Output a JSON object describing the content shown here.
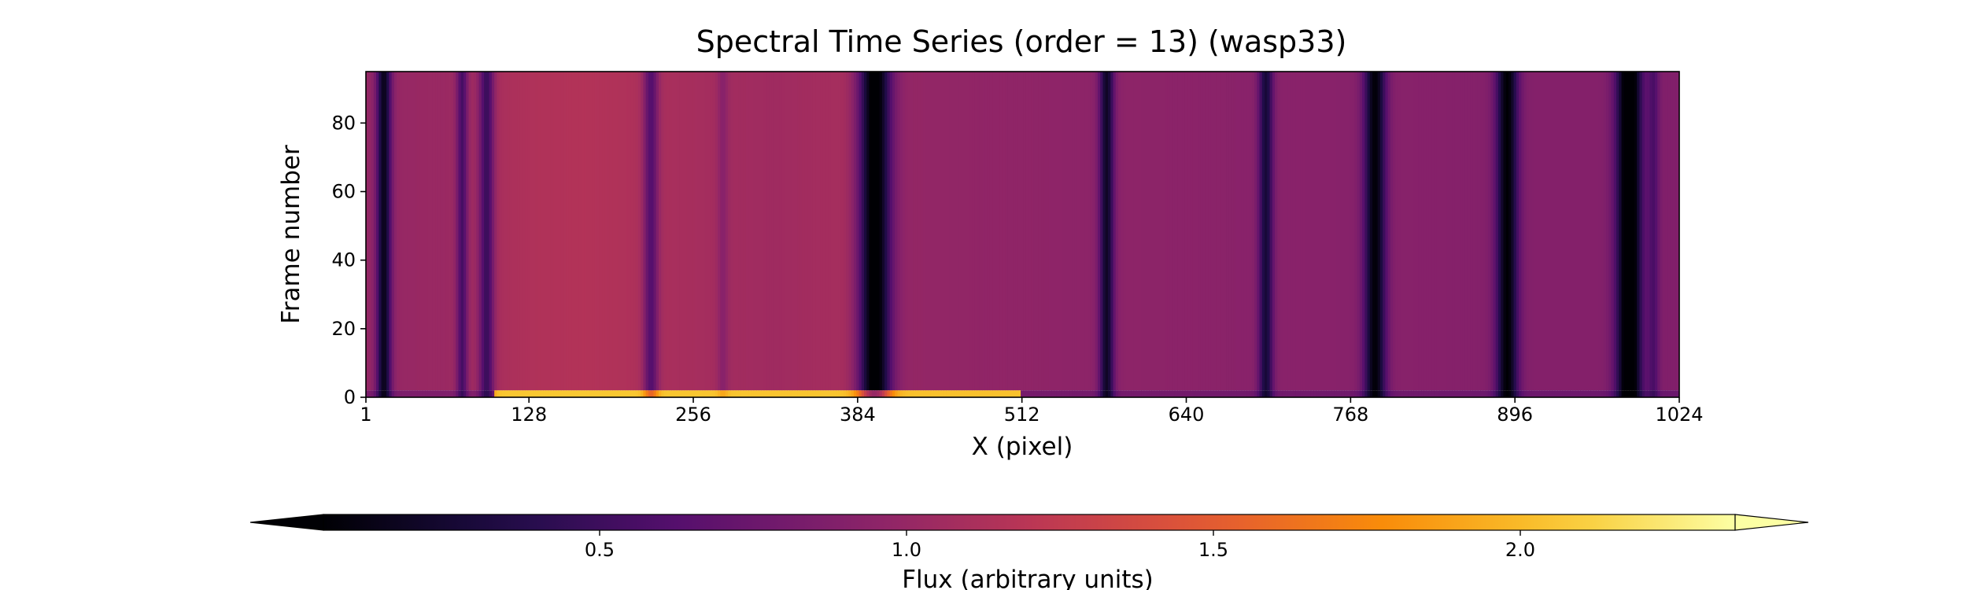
{
  "chart_data": {
    "type": "heatmap",
    "title": "Spectral Time Series (order = 13) (wasp33)",
    "xlabel": "X (pixel)",
    "ylabel": "Frame number",
    "xlim": [
      1,
      1024
    ],
    "ylim": [
      0,
      95
    ],
    "xticks": [
      1,
      128,
      256,
      384,
      512,
      640,
      768,
      896,
      1024
    ],
    "yticks": [
      0,
      20,
      40,
      60,
      80
    ],
    "colormap": "inferno",
    "colorbar": {
      "label": "Flux (arbitrary units)",
      "range": [
        0.05,
        2.35
      ],
      "ticks": [
        0.5,
        1.0,
        1.5,
        2.0
      ],
      "tick_labels": [
        "0.5",
        "1.0",
        "1.5",
        "2.0"
      ],
      "extend": "both",
      "orientation": "horizontal"
    },
    "continuum_profile": {
      "x": [
        1,
        20,
        60,
        100,
        130,
        170,
        200,
        240,
        280,
        320,
        360,
        383,
        400,
        440,
        480,
        520,
        560,
        600,
        640,
        680,
        720,
        760,
        800,
        840,
        880,
        920,
        960,
        1000,
        1024
      ],
      "flux": [
        1.0,
        1.0,
        1.02,
        1.1,
        1.14,
        1.16,
        1.14,
        1.1,
        1.07,
        1.05,
        1.08,
        1.12,
        1.0,
        0.98,
        0.97,
        0.96,
        0.95,
        0.95,
        0.94,
        0.93,
        0.93,
        0.92,
        0.92,
        0.91,
        0.9,
        0.9,
        0.9,
        0.89,
        0.88
      ]
    },
    "absorption_lines": [
      {
        "x": 14,
        "depth": 0.85,
        "width": 4
      },
      {
        "x": 75,
        "depth": 0.5,
        "width": 3
      },
      {
        "x": 94,
        "depth": 0.6,
        "width": 4
      },
      {
        "x": 222,
        "depth": 0.5,
        "width": 4
      },
      {
        "x": 278,
        "depth": 0.15,
        "width": 3
      },
      {
        "x": 396,
        "depth": 1.05,
        "width": 9
      },
      {
        "x": 577,
        "depth": 0.75,
        "width": 4
      },
      {
        "x": 701,
        "depth": 0.65,
        "width": 4
      },
      {
        "x": 786,
        "depth": 0.85,
        "width": 6
      },
      {
        "x": 889,
        "depth": 0.85,
        "width": 6
      },
      {
        "x": 984,
        "depth": 1.05,
        "width": 7
      },
      {
        "x": 1003,
        "depth": 0.3,
        "width": 3
      }
    ],
    "brightening": {
      "frames": [
        0,
        2
      ],
      "x_range": [
        100,
        510
      ],
      "peak_flux": 2.3
    }
  }
}
